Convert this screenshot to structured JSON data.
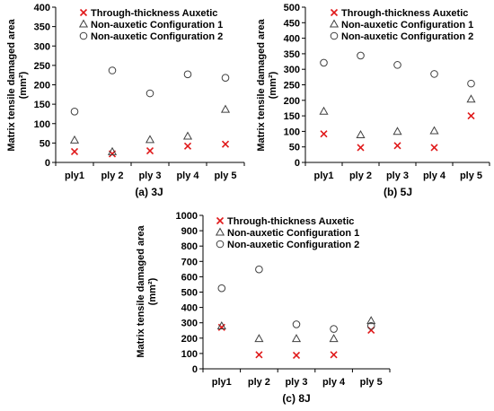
{
  "series_styles": {
    "Through-thickness Auxetic": {
      "marker": "x",
      "color": "#e0191a"
    },
    "Non-auxetic Configuration 1": {
      "marker": "triangle",
      "color": "#404040"
    },
    "Non-auxetic Configuration 2": {
      "marker": "circle",
      "color": "#404040"
    }
  },
  "chart_data": [
    {
      "type": "scatter",
      "caption": "(a) 3J",
      "ylabel_line1": "Matrix tensile damaged area",
      "ylabel_line2": "(mm²)",
      "categories": [
        "ply1",
        "ply 2",
        "ply 3",
        "ply 4",
        "ply 5"
      ],
      "ylim": [
        0,
        400
      ],
      "yticks": [
        0,
        50,
        100,
        150,
        200,
        250,
        300,
        350,
        400
      ],
      "legend_position": "top-left",
      "series": [
        {
          "name": "Through-thickness Auxetic",
          "values": [
            28,
            22,
            30,
            42,
            47
          ]
        },
        {
          "name": "Non-auxetic Configuration 1",
          "values": [
            57,
            27,
            58,
            67,
            136
          ]
        },
        {
          "name": "Non-auxetic Configuration 2",
          "values": [
            131,
            237,
            178,
            227,
            218
          ]
        }
      ]
    },
    {
      "type": "scatter",
      "caption": "(b) 5J",
      "ylabel_line1": "Matrix tensile damaged area",
      "ylabel_line2": "(mm²)",
      "categories": [
        "ply1",
        "ply 2",
        "ply 3",
        "ply 4",
        "ply 5"
      ],
      "ylim": [
        0,
        500
      ],
      "yticks": [
        0,
        50,
        100,
        150,
        200,
        250,
        300,
        350,
        400,
        450,
        500
      ],
      "legend_position": "top-left",
      "series": [
        {
          "name": "Through-thickness Auxetic",
          "values": [
            92,
            48,
            54,
            48,
            150
          ]
        },
        {
          "name": "Non-auxetic Configuration 1",
          "values": [
            164,
            88,
            99,
            101,
            203
          ]
        },
        {
          "name": "Non-auxetic Configuration 2",
          "values": [
            321,
            344,
            314,
            285,
            254
          ]
        }
      ]
    },
    {
      "type": "scatter",
      "caption": "(c) 8J",
      "ylabel_line1": "Matrix tensile damaged area",
      "ylabel_line2": "(mm²)",
      "categories": [
        "ply1",
        "ply 2",
        "ply 3",
        "ply 4",
        "ply 5"
      ],
      "ylim": [
        0,
        1000
      ],
      "yticks": [
        0,
        100,
        200,
        300,
        400,
        500,
        600,
        700,
        800,
        900,
        1000
      ],
      "legend_position": "top-left",
      "series": [
        {
          "name": "Through-thickness Auxetic",
          "values": [
            270,
            92,
            88,
            92,
            252
          ]
        },
        {
          "name": "Non-auxetic Configuration 1",
          "values": [
            278,
            195,
            195,
            195,
            312
          ]
        },
        {
          "name": "Non-auxetic Configuration 2",
          "values": [
            525,
            648,
            290,
            260,
            280
          ]
        }
      ]
    }
  ]
}
